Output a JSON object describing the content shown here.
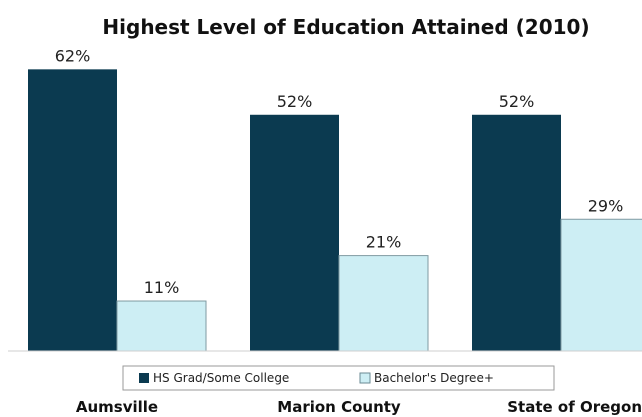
{
  "chart_data": {
    "type": "bar",
    "title": "Highest Level of Education Attained (2010)",
    "categories": [
      "Aumsville",
      "Marion County",
      "State of Oregon"
    ],
    "series": [
      {
        "name": "HS Grad/Some College",
        "values": [
          62,
          52,
          52
        ],
        "color": "#0b3a50"
      },
      {
        "name": "Bachelor's Degree+",
        "values": [
          11,
          21,
          29
        ],
        "color": "#cdeef4"
      }
    ],
    "value_suffix": "%",
    "ylim": [
      0,
      70
    ],
    "grid": false,
    "legend_position": "bottom"
  }
}
